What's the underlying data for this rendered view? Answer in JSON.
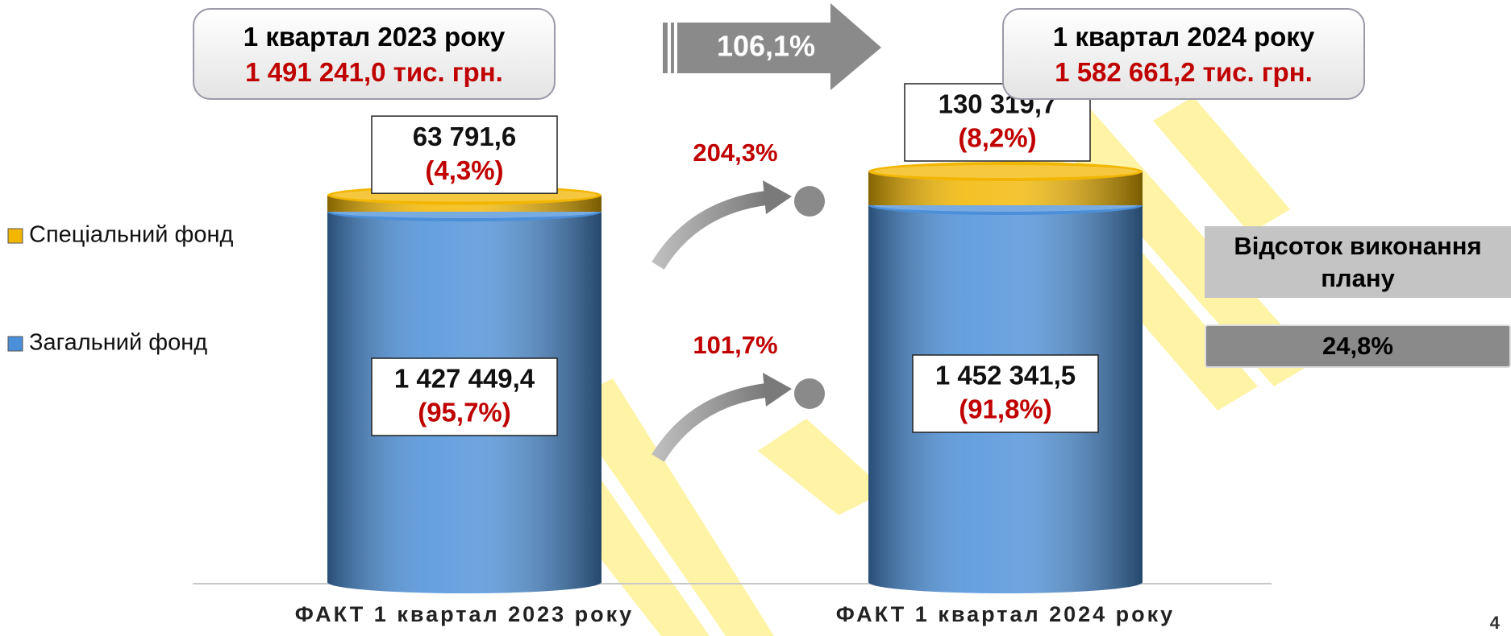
{
  "chart_data": {
    "type": "stacked_bar",
    "categories": [
      "ФАКТ 1 квартал 2023 року",
      "ФАКТ 1 квартал 2024 року"
    ],
    "series": [
      {
        "name": "Загальний фонд",
        "color": "#4a8fd8",
        "values": [
          1427449.4,
          1452341.5
        ],
        "value_labels": [
          "1 427 449,4",
          "1 452 341,5"
        ],
        "share_labels": [
          "(95,7%)",
          "(91,8%)"
        ],
        "growth_label": "101,7%"
      },
      {
        "name": "Спеціальний фонд",
        "color": "#f2b600",
        "values": [
          63791.6,
          130319.7
        ],
        "value_labels": [
          "63 791,6",
          "130 319,7"
        ],
        "share_labels": [
          "(4,3%)",
          "(8,2%)"
        ],
        "growth_label": "204,3%"
      }
    ],
    "totals": [
      {
        "period": "1 квартал 2023 року",
        "label": "1 491 241,0 тис. грн."
      },
      {
        "period": "1 квартал 2024 року",
        "label": "1 582 661,2 тис. грн."
      }
    ],
    "total_growth_label": "106,1%",
    "plan": {
      "title": "Відсоток виконання плану",
      "label": "24,8%"
    },
    "page_number": "4"
  }
}
